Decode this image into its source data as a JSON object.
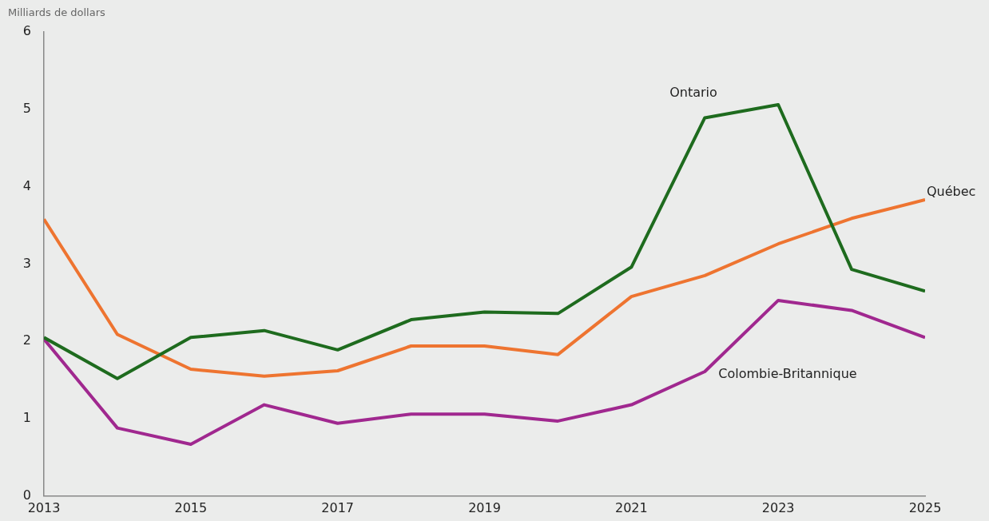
{
  "chart_data": {
    "type": "line",
    "ylabel": "Milliards de dollars",
    "x": [
      2013,
      2014,
      2015,
      2016,
      2017,
      2018,
      2019,
      2020,
      2021,
      2022,
      2023,
      2024,
      2025
    ],
    "xlim": [
      2013,
      2025
    ],
    "xticks": [
      2013,
      2015,
      2017,
      2019,
      2021,
      2023,
      2025
    ],
    "ylim": [
      0,
      6
    ],
    "yticks": [
      0,
      1,
      2,
      3,
      4,
      5,
      6
    ],
    "marker": "none",
    "line_style": "solid",
    "series": [
      {
        "name": "Ontario",
        "color": "#1e6b1e",
        "values": [
          2.05,
          1.52,
          2.05,
          2.14,
          1.89,
          2.28,
          2.38,
          2.36,
          2.96,
          4.89,
          5.06,
          2.93,
          2.65
        ]
      },
      {
        "name": "Québec",
        "color": "#ee7430",
        "values": [
          3.58,
          2.09,
          1.64,
          1.55,
          1.62,
          1.94,
          1.94,
          1.83,
          2.58,
          2.85,
          3.26,
          3.59,
          3.83
        ]
      },
      {
        "name": "Colombie-Britannique",
        "color": "#a0288f",
        "values": [
          2.03,
          0.88,
          0.67,
          1.18,
          0.94,
          1.06,
          1.06,
          0.97,
          1.18,
          1.61,
          2.53,
          2.4,
          2.05
        ]
      }
    ]
  }
}
